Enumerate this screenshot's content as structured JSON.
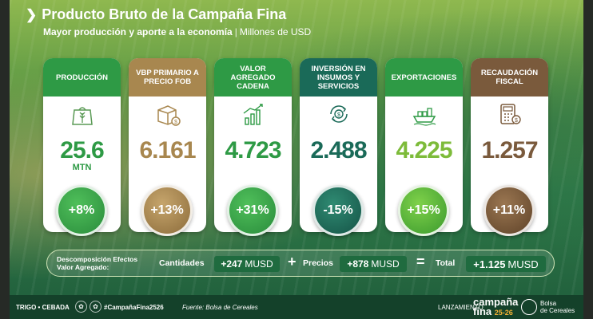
{
  "header": {
    "title": "Producto Bruto de la Campaña Fina",
    "subtitle_bold": "Mayor producción y aporte a la economía",
    "separator": "|",
    "subtitle_unit": "Millones de USD"
  },
  "colors": {
    "green": "#2e9a45",
    "gold": "#a8874f",
    "dark_teal": "#1a6a58",
    "brown": "#7a5a3c"
  },
  "cards": [
    {
      "title": "PRODUCCIÓN",
      "icon": "wheat-bag-icon",
      "value": "25.6",
      "unit": "MTN",
      "change": "+8%"
    },
    {
      "title": "VBP PRIMARIO A PRECIO FOB",
      "icon": "box-coin-icon",
      "value": "6.161",
      "change": "+13%"
    },
    {
      "title": "VALOR AGREGADO CADENA",
      "icon": "bar-chart-growth-icon",
      "value": "4.723",
      "change": "+31%"
    },
    {
      "title": "INVERSIÓN EN INSUMOS Y SERVICIOS",
      "icon": "money-cycle-icon",
      "value": "2.488",
      "change": "-15%"
    },
    {
      "title": "EXPORTACIONES",
      "icon": "cargo-ship-icon",
      "value": "4.225",
      "change": "+15%"
    },
    {
      "title": "RECAUDACIÓN FISCAL",
      "icon": "calculator-coin-icon",
      "value": "1.257",
      "change": "+11%"
    }
  ],
  "decomposition": {
    "label": "Descomposición Efectos Valor Agregado:",
    "quantities_label": "Cantidades",
    "quantities_value": "+247",
    "prices_label": "Precios",
    "prices_value": "+878",
    "total_label": "Total",
    "total_value": "+1.125",
    "unit": "MUSD",
    "plus": "+",
    "equals": "="
  },
  "footer": {
    "crops": "TRIGO • CEBADA",
    "hashtag": "#CampañaFina2526",
    "source": "Fuente: Bolsa de Cereales",
    "launch": "LANZAMIENTO",
    "brand_line1": "campaña",
    "brand_line2": "fina",
    "brand_years": "25-26",
    "org_line1": "Bolsa",
    "org_line2": "de Cereales"
  }
}
